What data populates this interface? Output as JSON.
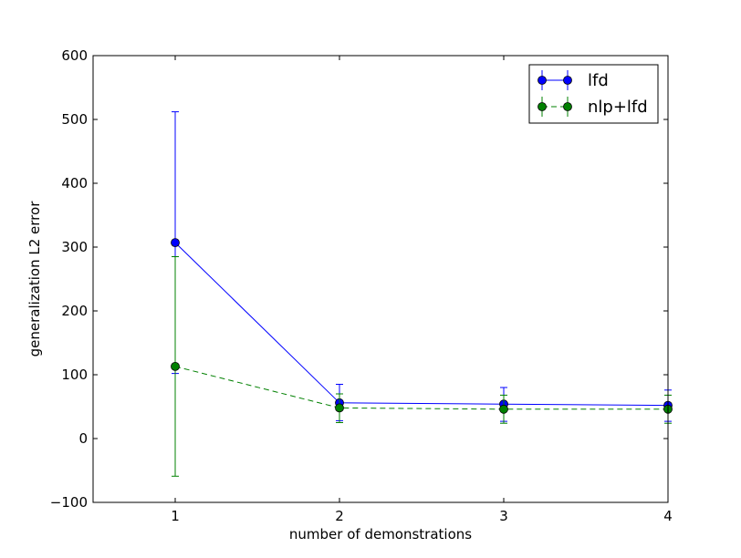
{
  "chart_data": {
    "type": "line",
    "title": "",
    "xlabel": "number of demonstrations",
    "ylabel": "generalization L2 error",
    "xlim": [
      0.5,
      4
    ],
    "ylim": [
      -100,
      600
    ],
    "x_ticks": [
      1,
      2,
      3,
      4
    ],
    "y_ticks": [
      -100,
      0,
      100,
      200,
      300,
      400,
      500,
      600
    ],
    "x_tick_labels": [
      "1",
      "2",
      "3",
      "4"
    ],
    "y_tick_labels": [
      "−100",
      "0",
      "100",
      "200",
      "300",
      "400",
      "500",
      "600"
    ],
    "grid": false,
    "legend_position": "top-right",
    "series": [
      {
        "name": "lfd",
        "color": "#0000ff",
        "line_style": "solid",
        "marker": "circle",
        "x": [
          1,
          2,
          3,
          4
        ],
        "y": [
          307,
          56,
          54,
          52
        ],
        "err_low": [
          102,
          28,
          27,
          27
        ],
        "err_high": [
          512,
          85,
          80,
          76
        ]
      },
      {
        "name": "nlp+lfd",
        "color": "#008000",
        "line_style": "dashed",
        "marker": "circle",
        "x": [
          1,
          2,
          3,
          4
        ],
        "y": [
          113,
          48,
          46,
          46
        ],
        "err_low": [
          -59,
          25,
          24,
          24
        ],
        "err_high": [
          285,
          70,
          68,
          68
        ]
      }
    ]
  }
}
